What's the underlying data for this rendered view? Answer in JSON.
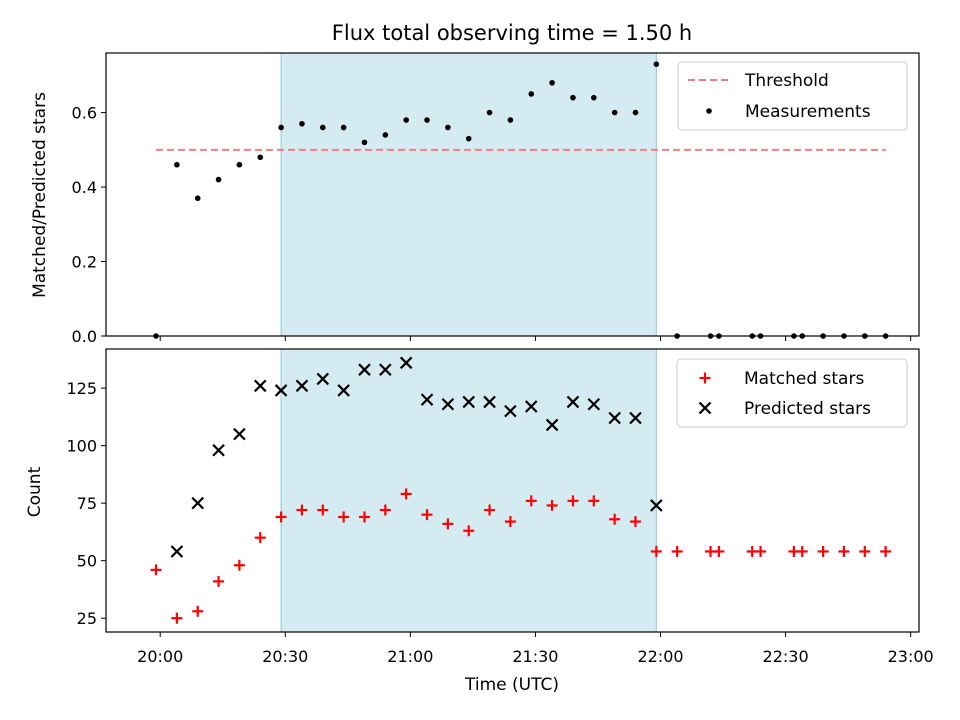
{
  "chart_data": [
    {
      "type": "scatter",
      "title": "Flux total observing time = 1.50 h",
      "xlabel": "",
      "ylabel": "Matched/Predicted stars",
      "ylim": [
        0,
        0.76
      ],
      "yticks": [
        0.0,
        0.2,
        0.4,
        0.6
      ],
      "ytick_labels": [
        "0.0",
        "0.2",
        "0.4",
        "0.6"
      ],
      "xlim": [
        "19:47",
        "23:02"
      ],
      "x_unit": "time (UTC)",
      "observing_window": [
        "20:29",
        "21:59"
      ],
      "legend_position": "upper right",
      "threshold": {
        "name": "Threshold",
        "value": 0.5,
        "x_range": [
          "19:59",
          "22:54"
        ],
        "color": "#f08080",
        "style": "dashed"
      },
      "series": [
        {
          "name": "Measurements",
          "marker": "dot",
          "color": "#000000",
          "x": [
            "19:59",
            "20:04",
            "20:09",
            "20:14",
            "20:19",
            "20:24",
            "20:29",
            "20:34",
            "20:39",
            "20:44",
            "20:49",
            "20:54",
            "20:59",
            "21:04",
            "21:09",
            "21:14",
            "21:19",
            "21:24",
            "21:29",
            "21:34",
            "21:39",
            "21:44",
            "21:49",
            "21:54",
            "21:59",
            "22:04",
            "22:12",
            "22:14",
            "22:22",
            "22:24",
            "22:32",
            "22:34",
            "22:39",
            "22:44",
            "22:49",
            "22:54"
          ],
          "values": [
            0.0,
            0.46,
            0.37,
            0.42,
            0.46,
            0.48,
            0.56,
            0.57,
            0.56,
            0.56,
            0.52,
            0.54,
            0.58,
            0.58,
            0.56,
            0.53,
            0.6,
            0.58,
            0.65,
            0.68,
            0.64,
            0.64,
            0.6,
            0.6,
            0.73,
            0.0,
            0.0,
            0.0,
            0.0,
            0.0,
            0.0,
            0.0,
            0.0,
            0.0,
            0.0,
            0.0
          ]
        }
      ]
    },
    {
      "type": "scatter",
      "title": "",
      "xlabel": "Time (UTC)",
      "ylabel": "Count",
      "ylim": [
        19,
        142
      ],
      "yticks": [
        25,
        50,
        75,
        100,
        125
      ],
      "ytick_labels": [
        "25",
        "50",
        "75",
        "100",
        "125"
      ],
      "xlim": [
        "19:47",
        "23:02"
      ],
      "xticks": [
        "20:00",
        "20:30",
        "21:00",
        "21:30",
        "22:00",
        "22:30",
        "23:00"
      ],
      "xtick_labels": [
        "20:00",
        "20:30",
        "21:00",
        "21:30",
        "22:00",
        "22:30",
        "23:00"
      ],
      "observing_window": [
        "20:29",
        "21:59"
      ],
      "legend_position": "upper right",
      "series": [
        {
          "name": "Matched stars",
          "marker": "plus",
          "color": "#ff0000",
          "x": [
            "19:59",
            "20:04",
            "20:09",
            "20:14",
            "20:19",
            "20:24",
            "20:29",
            "20:34",
            "20:39",
            "20:44",
            "20:49",
            "20:54",
            "20:59",
            "21:04",
            "21:09",
            "21:14",
            "21:19",
            "21:24",
            "21:29",
            "21:34",
            "21:39",
            "21:44",
            "21:49",
            "21:54",
            "21:59",
            "22:04",
            "22:12",
            "22:14",
            "22:22",
            "22:24",
            "22:32",
            "22:34",
            "22:39",
            "22:44",
            "22:49",
            "22:54"
          ],
          "values": [
            46,
            25,
            28,
            41,
            48,
            60,
            69,
            72,
            72,
            69,
            69,
            72,
            79,
            70,
            66,
            63,
            72,
            67,
            76,
            74,
            76,
            76,
            68,
            67,
            54,
            54,
            54,
            54,
            54,
            54,
            54,
            54,
            54,
            54,
            54,
            54
          ]
        },
        {
          "name": "Predicted stars",
          "marker": "x",
          "color": "#000000",
          "x": [
            "20:04",
            "20:09",
            "20:14",
            "20:19",
            "20:24",
            "20:29",
            "20:34",
            "20:39",
            "20:44",
            "20:49",
            "20:54",
            "20:59",
            "21:04",
            "21:09",
            "21:14",
            "21:19",
            "21:24",
            "21:29",
            "21:34",
            "21:39",
            "21:44",
            "21:49",
            "21:54",
            "21:59"
          ],
          "values": [
            54,
            75,
            98,
            105,
            126,
            124,
            126,
            129,
            124,
            133,
            133,
            136,
            120,
            118,
            119,
            119,
            115,
            117,
            109,
            119,
            118,
            112,
            112,
            74
          ]
        }
      ]
    }
  ],
  "colors": {
    "window_fill": "#add8e6",
    "window_edge": "#8fc6d6"
  }
}
